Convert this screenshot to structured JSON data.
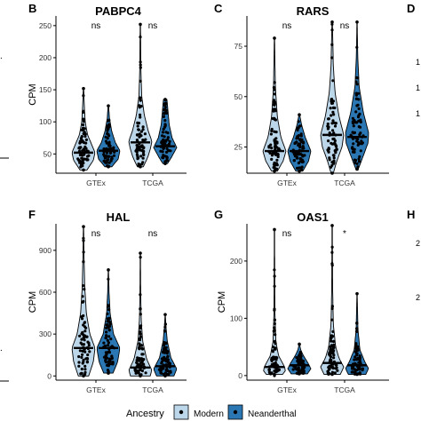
{
  "colors": {
    "modern": "#bcd6ea",
    "neanderthal": "#2b77b3",
    "outline": "#000000",
    "points": "#000000"
  },
  "legend": {
    "title": "Ancestry",
    "items": [
      {
        "label": "Modern",
        "color": "#bcd6ea"
      },
      {
        "label": "Neanderthal",
        "color": "#2b77b3"
      }
    ]
  },
  "edge_fragments": {
    "left_ticks": [
      ".",
      ".",
      "."
    ],
    "right_letters": [
      "D",
      "H"
    ],
    "right_ticks": [
      "1",
      "1",
      "1",
      "2",
      "2"
    ]
  },
  "chart_data": [
    {
      "panel": "B",
      "type": "violin",
      "title": "PABPC4",
      "ylabel": "CPM",
      "groups": [
        "GTEx",
        "TCGA"
      ],
      "series": [
        "Modern",
        "Neanderthal"
      ],
      "yticks": [
        50,
        100,
        150,
        200,
        250
      ],
      "ylim": [
        20,
        265
      ],
      "significance": [
        "ns",
        "ns"
      ],
      "violins": [
        {
          "group": "GTEx",
          "series": "Modern",
          "median": 52,
          "min": 25,
          "max": 152,
          "profile": [
            [
              25,
              0.3
            ],
            [
              40,
              0.85
            ],
            [
              52,
              1
            ],
            [
              65,
              0.7
            ],
            [
              80,
              0.35
            ],
            [
              100,
              0.15
            ],
            [
              125,
              0.07
            ],
            [
              152,
              0.02
            ]
          ]
        },
        {
          "group": "GTEx",
          "series": "Neanderthal",
          "median": 55,
          "min": 30,
          "max": 125,
          "profile": [
            [
              30,
              0.3
            ],
            [
              42,
              0.85
            ],
            [
              55,
              1
            ],
            [
              68,
              0.6
            ],
            [
              85,
              0.3
            ],
            [
              105,
              0.1
            ],
            [
              125,
              0.02
            ]
          ]
        },
        {
          "group": "TCGA",
          "series": "Modern",
          "median": 68,
          "min": 30,
          "max": 252,
          "profile": [
            [
              30,
              0.25
            ],
            [
              45,
              0.65
            ],
            [
              60,
              0.9
            ],
            [
              70,
              1
            ],
            [
              85,
              0.7
            ],
            [
              110,
              0.35
            ],
            [
              140,
              0.12
            ],
            [
              180,
              0.05
            ],
            [
              220,
              0.03
            ],
            [
              252,
              0.01
            ]
          ]
        },
        {
          "group": "TCGA",
          "series": "Neanderthal",
          "median": 62,
          "min": 35,
          "max": 135,
          "profile": [
            [
              35,
              0.2
            ],
            [
              45,
              0.55
            ],
            [
              60,
              1
            ],
            [
              75,
              0.6
            ],
            [
              95,
              0.35
            ],
            [
              115,
              0.25
            ],
            [
              135,
              0.15
            ]
          ]
        }
      ]
    },
    {
      "panel": "C",
      "type": "violin",
      "title": "RARS",
      "ylabel": "",
      "groups": [
        "GTEx",
        "TCGA"
      ],
      "series": [
        "Modern",
        "Neanderthal"
      ],
      "yticks": [
        25,
        50,
        75
      ],
      "ylim": [
        12,
        90
      ],
      "significance": [
        "ns",
        "ns"
      ],
      "violins": [
        {
          "group": "GTEx",
          "series": "Modern",
          "median": 23,
          "min": 13,
          "max": 79,
          "profile": [
            [
              13,
              0.25
            ],
            [
              18,
              0.75
            ],
            [
              23,
              1
            ],
            [
              30,
              0.55
            ],
            [
              40,
              0.25
            ],
            [
              55,
              0.08
            ],
            [
              79,
              0.01
            ]
          ]
        },
        {
          "group": "GTEx",
          "series": "Neanderthal",
          "median": 23,
          "min": 13,
          "max": 41,
          "profile": [
            [
              13,
              0.3
            ],
            [
              18,
              0.8
            ],
            [
              23,
              1
            ],
            [
              30,
              0.5
            ],
            [
              36,
              0.2
            ],
            [
              41,
              0.03
            ]
          ]
        },
        {
          "group": "TCGA",
          "series": "Modern",
          "median": 31,
          "min": 12,
          "max": 87,
          "profile": [
            [
              12,
              0.1
            ],
            [
              18,
              0.4
            ],
            [
              25,
              0.85
            ],
            [
              31,
              1
            ],
            [
              40,
              0.6
            ],
            [
              52,
              0.25
            ],
            [
              65,
              0.1
            ],
            [
              87,
              0.02
            ]
          ]
        },
        {
          "group": "TCGA",
          "series": "Neanderthal",
          "median": 30,
          "min": 14,
          "max": 87,
          "profile": [
            [
              14,
              0.1
            ],
            [
              20,
              0.5
            ],
            [
              27,
              0.95
            ],
            [
              32,
              1
            ],
            [
              42,
              0.55
            ],
            [
              55,
              0.18
            ],
            [
              70,
              0.06
            ],
            [
              87,
              0.01
            ]
          ]
        }
      ]
    },
    {
      "panel": "F",
      "type": "violin",
      "title": "HAL",
      "ylabel": "CPM",
      "groups": [
        "GTEx",
        "TCGA"
      ],
      "series": [
        "Modern",
        "Neanderthal"
      ],
      "yticks": [
        0,
        300,
        600,
        900
      ],
      "ylim": [
        -30,
        1090
      ],
      "significance": [
        "ns",
        "ns"
      ],
      "violins": [
        {
          "group": "GTEx",
          "series": "Modern",
          "median": 200,
          "min": 0,
          "max": 1070,
          "profile": [
            [
              0,
              0.45
            ],
            [
              100,
              0.85
            ],
            [
              200,
              1
            ],
            [
              300,
              0.55
            ],
            [
              450,
              0.25
            ],
            [
              650,
              0.1
            ],
            [
              850,
              0.05
            ],
            [
              1070,
              0.01
            ]
          ]
        },
        {
          "group": "GTEx",
          "series": "Neanderthal",
          "median": 200,
          "min": 20,
          "max": 760,
          "profile": [
            [
              20,
              0.4
            ],
            [
              100,
              0.8
            ],
            [
              200,
              1
            ],
            [
              300,
              0.45
            ],
            [
              450,
              0.15
            ],
            [
              600,
              0.06
            ],
            [
              760,
              0.01
            ]
          ]
        },
        {
          "group": "TCGA",
          "series": "Modern",
          "median": 60,
          "min": 0,
          "max": 880,
          "profile": [
            [
              0,
              0.85
            ],
            [
              40,
              1
            ],
            [
              120,
              0.55
            ],
            [
              250,
              0.2
            ],
            [
              400,
              0.08
            ],
            [
              600,
              0.03
            ],
            [
              880,
              0.01
            ]
          ]
        },
        {
          "group": "TCGA",
          "series": "Neanderthal",
          "median": 70,
          "min": 0,
          "max": 440,
          "profile": [
            [
              0,
              0.75
            ],
            [
              50,
              1
            ],
            [
              130,
              0.5
            ],
            [
              250,
              0.18
            ],
            [
              350,
              0.07
            ],
            [
              440,
              0.01
            ]
          ]
        }
      ]
    },
    {
      "panel": "G",
      "type": "violin",
      "title": "OAS1",
      "ylabel": "CPM",
      "groups": [
        "GTEx",
        "TCGA"
      ],
      "series": [
        "Modern",
        "Neanderthal"
      ],
      "yticks": [
        0,
        100,
        200
      ],
      "ylim": [
        -8,
        265
      ],
      "significance": [
        "ns",
        "*"
      ],
      "violins": [
        {
          "group": "GTEx",
          "series": "Modern",
          "median": 15,
          "min": 2,
          "max": 255,
          "profile": [
            [
              2,
              0.7
            ],
            [
              10,
              1
            ],
            [
              20,
              0.75
            ],
            [
              35,
              0.35
            ],
            [
              60,
              0.12
            ],
            [
              110,
              0.04
            ],
            [
              255,
              0.01
            ]
          ]
        },
        {
          "group": "GTEx",
          "series": "Neanderthal",
          "median": 18,
          "min": 3,
          "max": 55,
          "profile": [
            [
              3,
              0.7
            ],
            [
              12,
              1
            ],
            [
              22,
              0.75
            ],
            [
              35,
              0.35
            ],
            [
              45,
              0.12
            ],
            [
              55,
              0.02
            ]
          ]
        },
        {
          "group": "TCGA",
          "series": "Modern",
          "median": 22,
          "min": 2,
          "max": 262,
          "profile": [
            [
              2,
              0.7
            ],
            [
              15,
              1
            ],
            [
              30,
              0.6
            ],
            [
              50,
              0.3
            ],
            [
              90,
              0.1
            ],
            [
              150,
              0.04
            ],
            [
              262,
              0.01
            ]
          ]
        },
        {
          "group": "TCGA",
          "series": "Neanderthal",
          "median": 18,
          "min": 2,
          "max": 143,
          "profile": [
            [
              2,
              0.75
            ],
            [
              12,
              1
            ],
            [
              25,
              0.65
            ],
            [
              45,
              0.25
            ],
            [
              80,
              0.08
            ],
            [
              143,
              0.01
            ]
          ]
        }
      ]
    }
  ]
}
